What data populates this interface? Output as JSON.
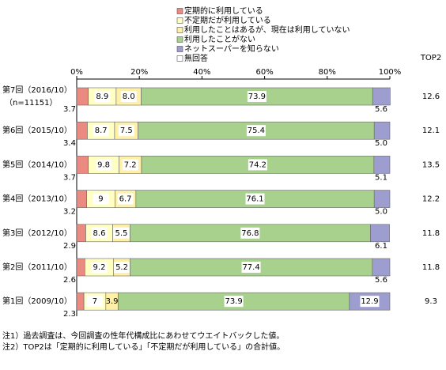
{
  "chart_data": {
    "type": "stacked-bar-horizontal",
    "categories": [
      "第7回（2016/10）",
      "第6回（2015/10）",
      "第5回（2014/10）",
      "第4回（2013/10）",
      "第3回（2012/10）",
      "第2回（2011/10）",
      "第1回（2009/10）"
    ],
    "n_label": "（n=11151）",
    "series": [
      {
        "name": "定期的に利用している",
        "color": "#ea8a80",
        "values": [
          3.7,
          3.4,
          3.7,
          3.2,
          2.9,
          2.6,
          2.3
        ]
      },
      {
        "name": "不定期だが利用している",
        "color": "#ffffc4",
        "values": [
          8.9,
          8.7,
          9.8,
          9.0,
          8.6,
          9.2,
          7.0
        ]
      },
      {
        "name": "利用したことはあるが、現在は利用していない",
        "color": "#fff0a8",
        "values": [
          8.0,
          7.5,
          7.2,
          6.7,
          5.5,
          5.2,
          3.9
        ],
        "value_labels": [
          "8.0",
          "7.5",
          "7.2",
          "6.7",
          "5.5",
          "5.2",
          "3.9"
        ]
      },
      {
        "name": "利用したことがない",
        "color": "#a9d18e",
        "values": [
          73.9,
          75.4,
          74.2,
          76.1,
          76.8,
          77.4,
          73.9
        ]
      },
      {
        "name": "ネットスーパーを知らない",
        "color": "#9d9dd0",
        "values": [
          5.6,
          5.0,
          5.1,
          5.0,
          6.1,
          5.6,
          12.9
        ],
        "value_labels": [
          "5.6",
          "5.0",
          "5.1",
          "5.0",
          "6.1",
          "5.6",
          "12.9"
        ]
      },
      {
        "name": "無回答",
        "color": "#ffffff",
        "values": [
          0,
          0,
          0,
          0,
          0,
          0,
          0
        ]
      }
    ],
    "xlim": [
      0,
      100
    ],
    "xticks": [
      {
        "value": 0,
        "label": "0%"
      },
      {
        "value": 20,
        "label": "20%"
      },
      {
        "value": 40,
        "label": "40%"
      },
      {
        "value": 60,
        "label": "60%"
      },
      {
        "value": 80,
        "label": "80%"
      },
      {
        "value": 100,
        "label": "100%"
      }
    ],
    "top2_header": "TOP2",
    "top2": [
      12.6,
      12.1,
      13.5,
      12.2,
      11.8,
      11.8,
      9.3
    ],
    "notes": [
      "注1）過去調査は、今回調査の性年代構成比にあわせてウエイトバックした値。",
      "注2）TOP2は「定期的に利用している」「不定期だが利用している」の合計値。"
    ]
  }
}
